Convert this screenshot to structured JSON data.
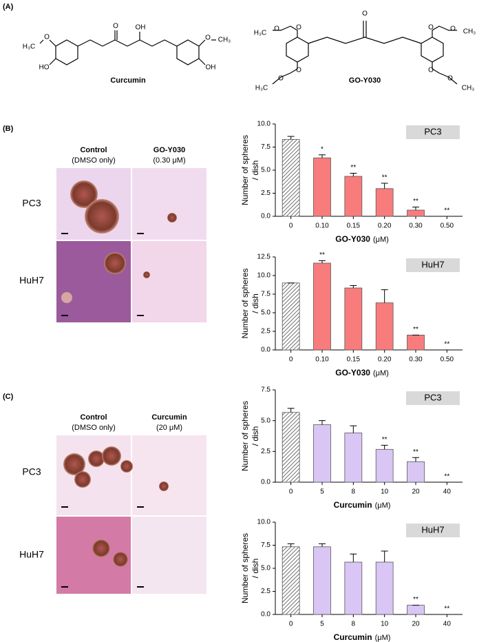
{
  "panel_labels": [
    "(A)",
    "(B)",
    "(C)"
  ],
  "structures": [
    {
      "name": "Curcumin",
      "atoms": [
        "O",
        "OH",
        "H₃C",
        "O",
        "HO",
        "O",
        "CH₃",
        "OH"
      ]
    },
    {
      "name": "GO-Y030",
      "atoms": [
        "O",
        "H₃C",
        "O",
        "O",
        "O",
        "O",
        "CH₃",
        "O",
        "O",
        "H₃C",
        "O",
        "O",
        "CH₃"
      ]
    }
  ],
  "micrographs": [
    {
      "columns": [
        {
          "title": "Control",
          "subtitle": "(DMSO only)"
        },
        {
          "title": "GO-Y030",
          "subtitle": "(0.30 μM)"
        }
      ],
      "rows": [
        "PC3",
        "HuH7"
      ]
    },
    {
      "columns": [
        {
          "title": "Control",
          "subtitle": "(DMSO only)"
        },
        {
          "title": "Curcumin",
          "subtitle": "(20 μM)"
        }
      ],
      "rows": [
        "PC3",
        "HuH7"
      ]
    }
  ],
  "chart_data": [
    {
      "type": "bar",
      "label": "PC3",
      "color": "#f97c7c",
      "categories": [
        "0",
        "0.10",
        "0.15",
        "0.20",
        "0.30",
        "0.50"
      ],
      "values": [
        8.33,
        6.33,
        4.33,
        3.0,
        0.67,
        0
      ],
      "errors": [
        0.33,
        0.33,
        0.33,
        0.58,
        0.33,
        0
      ],
      "annotations": [
        null,
        "*",
        "**",
        "**",
        "**",
        "**"
      ],
      "ylim": [
        0,
        10
      ],
      "yticks": [
        {
          "value": 0,
          "label": "0.0"
        },
        {
          "value": 2.5,
          "label": "2.5"
        },
        {
          "value": 5,
          "label": "5.0"
        },
        {
          "value": 7.5,
          "label": "7.5"
        },
        {
          "value": 10,
          "label": "10.0"
        }
      ],
      "ylabel": [
        "Number of spheres",
        "/ dish"
      ],
      "xlabel": "GO-Y030",
      "xlabel_unit": "(μM)"
    },
    {
      "type": "bar",
      "label": "HuH7",
      "color": "#f97c7c",
      "categories": [
        "0",
        "0.10",
        "0.15",
        "0.20",
        "0.30",
        "0.50"
      ],
      "values": [
        9.0,
        11.67,
        8.33,
        6.33,
        2.0,
        0
      ],
      "errors": [
        0,
        0.33,
        0.33,
        1.76,
        0,
        0
      ],
      "annotations": [
        null,
        "**",
        null,
        null,
        "**",
        "**"
      ],
      "ylim": [
        0,
        12.5
      ],
      "yticks": [
        {
          "value": 0,
          "label": "0.0"
        },
        {
          "value": 2.5,
          "label": "2.5"
        },
        {
          "value": 5,
          "label": "5.0"
        },
        {
          "value": 7.5,
          "label": "7.5"
        },
        {
          "value": 10,
          "label": "10.0"
        },
        {
          "value": 12.5,
          "label": "12.5"
        }
      ],
      "ylabel": [
        "Number of spheres",
        "/ dish"
      ],
      "xlabel": "GO-Y030",
      "xlabel_unit": "(μM)"
    },
    {
      "type": "bar",
      "label": "PC3",
      "color": "#d9c6f5",
      "categories": [
        "0",
        "5",
        "8",
        "10",
        "20",
        "40"
      ],
      "values": [
        5.67,
        4.67,
        4.0,
        2.67,
        1.67,
        0
      ],
      "errors": [
        0.33,
        0.33,
        0.58,
        0.33,
        0.33,
        0
      ],
      "annotations": [
        null,
        null,
        null,
        "**",
        "**",
        "**"
      ],
      "ylim": [
        0,
        7.5
      ],
      "yticks": [
        {
          "value": 0,
          "label": "0.0"
        },
        {
          "value": 2.5,
          "label": "2.5"
        },
        {
          "value": 5,
          "label": "5.0"
        },
        {
          "value": 7.5,
          "label": "7.5"
        }
      ],
      "ylabel": [
        "Number of spheres",
        "/ dish"
      ],
      "xlabel": "Curcumin",
      "xlabel_unit": "(μM)"
    },
    {
      "type": "bar",
      "label": "HuH7",
      "color": "#d9c6f5",
      "categories": [
        "0",
        "5",
        "8",
        "10",
        "20",
        "40"
      ],
      "values": [
        7.33,
        7.33,
        5.67,
        5.67,
        1.0,
        0
      ],
      "errors": [
        0.33,
        0.33,
        0.88,
        1.2,
        0,
        0
      ],
      "annotations": [
        null,
        null,
        null,
        null,
        "**",
        "**"
      ],
      "ylim": [
        0,
        10
      ],
      "yticks": [
        {
          "value": 0,
          "label": "0.0"
        },
        {
          "value": 2.5,
          "label": "2.5"
        },
        {
          "value": 5,
          "label": "5.0"
        },
        {
          "value": 7.5,
          "label": "7.5"
        },
        {
          "value": 10,
          "label": "10.0"
        }
      ],
      "ylabel": [
        "Number of spheres",
        "/ dish"
      ],
      "xlabel": "Curcumin",
      "xlabel_unit": "(μM)"
    }
  ]
}
